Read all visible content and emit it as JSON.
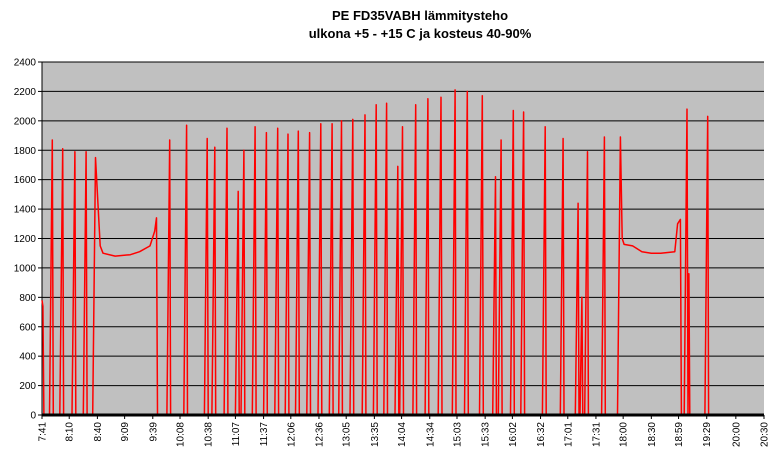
{
  "chart_data": {
    "type": "line",
    "title": [
      "PE FD35VABH lämmitysteho",
      "ulkona +5 - +15 C ja kosteus 40-90%"
    ],
    "color": "#ff0000",
    "grid": true,
    "ylim": [
      0,
      2400
    ],
    "yticks": [
      0,
      200,
      400,
      600,
      800,
      1000,
      1200,
      1400,
      1600,
      1800,
      2000,
      2200,
      2400
    ],
    "xlim": [
      "7:41",
      "20:30"
    ],
    "xticks": [
      "7:41",
      "8:10",
      "8:40",
      "9:09",
      "9:39",
      "10:08",
      "10:38",
      "11:07",
      "11:37",
      "12:06",
      "12:36",
      "13:05",
      "13:35",
      "14:04",
      "14:34",
      "15:03",
      "15:33",
      "16:02",
      "16:32",
      "17:01",
      "17:31",
      "18:00",
      "18:30",
      "18:59",
      "19:29",
      "20:00",
      "20:30"
    ],
    "x": [
      "7:41",
      "7:42",
      "7:43",
      "7:49",
      "7:52",
      "7:53",
      "8:00",
      "8:03",
      "8:04",
      "8:13",
      "8:16",
      "8:17",
      "8:25",
      "8:28",
      "8:29",
      "8:35",
      "8:38",
      "8:43",
      "8:46",
      "8:59",
      "9:15",
      "9:25",
      "9:36",
      "9:41",
      "9:43",
      "9:44",
      "9:54",
      "9:57",
      "9:58",
      "10:12",
      "10:15",
      "10:16",
      "10:34",
      "10:37",
      "10:38",
      "10:42",
      "10:45",
      "10:46",
      "10:55",
      "10:58",
      "10:59",
      "11:07",
      "11:10",
      "11:11",
      "11:13",
      "11:16",
      "11:17",
      "11:25",
      "11:28",
      "11:29",
      "11:37",
      "11:40",
      "11:41",
      "11:49",
      "11:52",
      "11:53",
      "12:00",
      "12:03",
      "12:04",
      "12:11",
      "12:14",
      "12:15",
      "12:23",
      "12:26",
      "12:27",
      "12:35",
      "12:38",
      "12:39",
      "12:47",
      "12:50",
      "12:51",
      "12:57",
      "13:00",
      "13:01",
      "13:09",
      "13:12",
      "13:13",
      "13:22",
      "13:25",
      "13:26",
      "13:34",
      "13:37",
      "13:38",
      "13:45",
      "13:48",
      "13:49",
      "13:57",
      "14:00",
      "14:01",
      "14:02",
      "14:05",
      "14:06",
      "14:16",
      "14:19",
      "14:20",
      "14:29",
      "14:32",
      "14:33",
      "14:43",
      "14:46",
      "14:47",
      "14:58",
      "15:01",
      "15:02",
      "15:11",
      "15:14",
      "15:15",
      "15:27",
      "15:30",
      "15:31",
      "15:41",
      "15:44",
      "15:45",
      "15:47",
      "15:50",
      "15:51",
      "16:00",
      "16:03",
      "16:04",
      "16:11",
      "16:14",
      "16:15",
      "16:34",
      "16:37",
      "16:38",
      "16:53",
      "16:56",
      "16:57",
      "17:09",
      "17:12",
      "17:13",
      "17:14",
      "17:16",
      "17:17",
      "17:19",
      "17:22",
      "17:23",
      "17:37",
      "17:40",
      "17:41",
      "17:54",
      "17:57",
      "17:59",
      "18:01",
      "18:10",
      "18:20",
      "18:30",
      "18:40",
      "18:55",
      "18:58",
      "19:01",
      "19:02",
      "19:05",
      "19:08",
      "19:09",
      "19:10",
      "19:11",
      "19:27",
      "19:30",
      "19:31",
      "20:30"
    ],
    "values": [
      780,
      740,
      0,
      0,
      1870,
      0,
      0,
      1810,
      0,
      0,
      1790,
      0,
      0,
      1790,
      0,
      0,
      1750,
      1150,
      1100,
      1080,
      1090,
      1110,
      1150,
      1250,
      1340,
      0,
      0,
      1870,
      0,
      0,
      1970,
      0,
      0,
      1880,
      0,
      0,
      1820,
      0,
      0,
      1950,
      0,
      0,
      1520,
      0,
      0,
      1800,
      0,
      0,
      1960,
      0,
      0,
      1920,
      0,
      0,
      1950,
      0,
      0,
      1910,
      0,
      0,
      1930,
      0,
      0,
      1920,
      0,
      0,
      1980,
      0,
      0,
      1980,
      0,
      0,
      2000,
      0,
      0,
      2010,
      0,
      0,
      2040,
      0,
      0,
      2110,
      0,
      0,
      2120,
      0,
      0,
      1690,
      0,
      0,
      1960,
      0,
      0,
      2110,
      0,
      0,
      2150,
      0,
      0,
      2160,
      0,
      0,
      2210,
      0,
      0,
      2200,
      0,
      0,
      2170,
      0,
      0,
      1620,
      0,
      0,
      1870,
      0,
      0,
      2070,
      0,
      0,
      2060,
      0,
      0,
      1960,
      0,
      0,
      1880,
      0,
      0,
      1440,
      0,
      0,
      800,
      0,
      0,
      1790,
      0,
      0,
      1890,
      0,
      0,
      1890,
      1200,
      1160,
      1150,
      1110,
      1100,
      1100,
      1110,
      1300,
      1330,
      0,
      0,
      2080,
      0,
      960,
      0,
      0,
      2030,
      0,
      0
    ]
  }
}
